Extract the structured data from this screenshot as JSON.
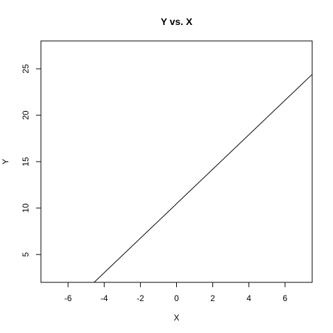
{
  "chart_data": {
    "type": "line",
    "title": "Y vs. X",
    "xlabel": "X",
    "ylabel": "Y",
    "xlim": [
      -7.5,
      7.5
    ],
    "ylim": [
      2.0,
      28.0
    ],
    "x_ticks": [
      -6,
      -4,
      -2,
      0,
      2,
      4,
      6
    ],
    "y_ticks": [
      5,
      10,
      15,
      20,
      25
    ],
    "grid": false,
    "series": [
      {
        "x": [
          -4.56,
          7.5
        ],
        "y": [
          2.0,
          24.4
        ]
      }
    ]
  }
}
